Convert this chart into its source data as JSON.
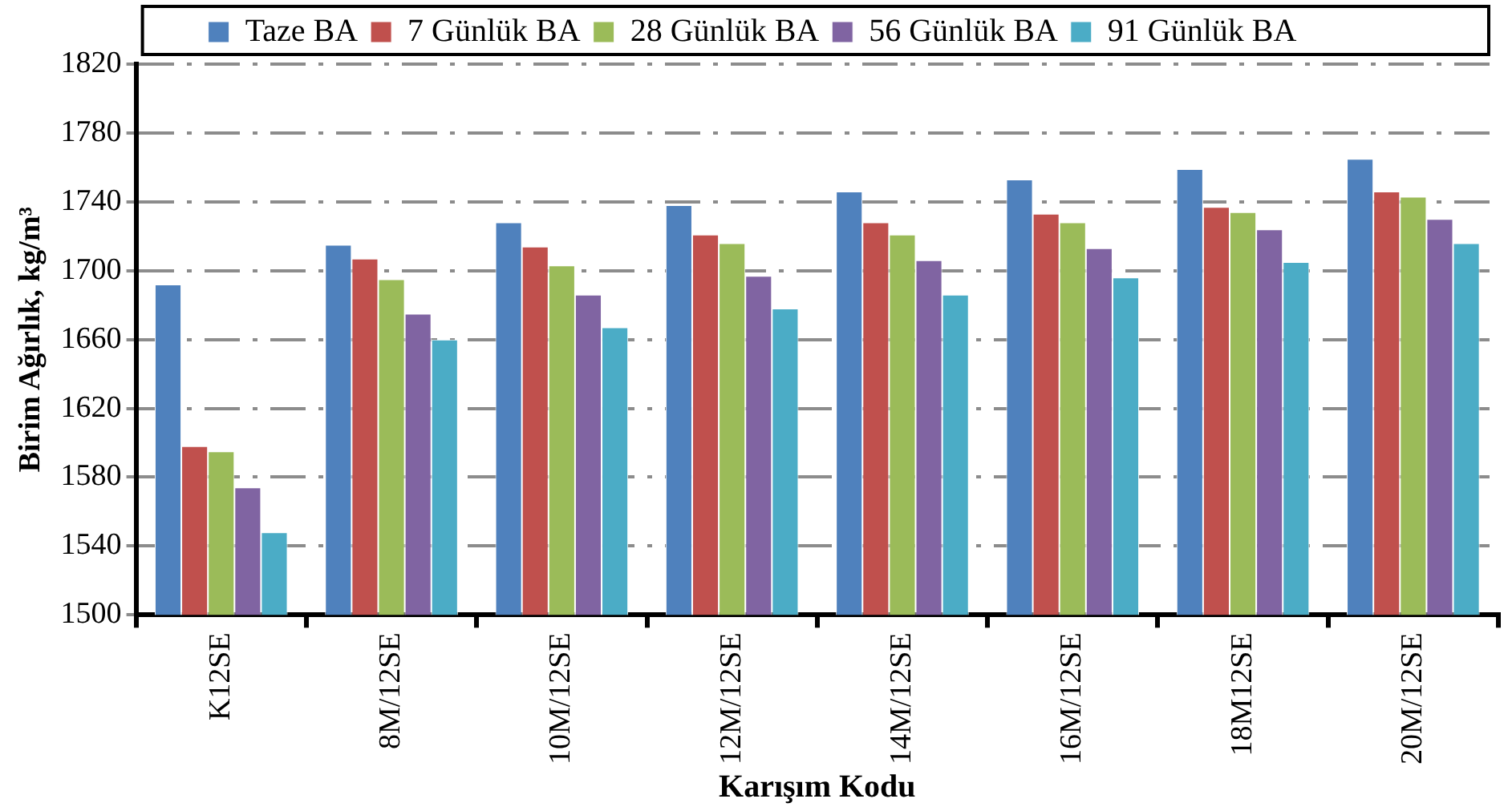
{
  "chart_data": {
    "type": "bar",
    "xlabel": "Karışım Kodu",
    "ylabel": "Birim Ağırlık, kg/m³",
    "categories": [
      "K12SE",
      "8M/12SE",
      "10M/12SE",
      "12M/12SE",
      "14M/12SE",
      "16M/12SE",
      "18M12SE",
      "20M/12SE"
    ],
    "series": [
      {
        "name": "Taze BA",
        "color": "#4f81bd",
        "values": [
          1692,
          1715,
          1728,
          1738,
          1746,
          1753,
          1759,
          1765
        ]
      },
      {
        "name": "7 Günlük BA",
        "color": "#c0504d",
        "values": [
          1598,
          1707,
          1714,
          1721,
          1728,
          1733,
          1737,
          1746
        ]
      },
      {
        "name": "28 Günlük BA",
        "color": "#9bbb59",
        "values": [
          1595,
          1695,
          1703,
          1716,
          1721,
          1728,
          1734,
          1743
        ]
      },
      {
        "name": "56 Günlük BA",
        "color": "#8064a2",
        "values": [
          1574,
          1675,
          1686,
          1697,
          1706,
          1713,
          1724,
          1730
        ]
      },
      {
        "name": "91 Günlük BA",
        "color": "#4bacc6",
        "values": [
          1548,
          1660,
          1667,
          1678,
          1686,
          1696,
          1705,
          1716
        ]
      }
    ],
    "ylim": [
      1500,
      1820
    ],
    "yticks": [
      1500,
      1540,
      1580,
      1620,
      1660,
      1700,
      1740,
      1780,
      1820
    ],
    "grid": "y",
    "legend": "top"
  }
}
